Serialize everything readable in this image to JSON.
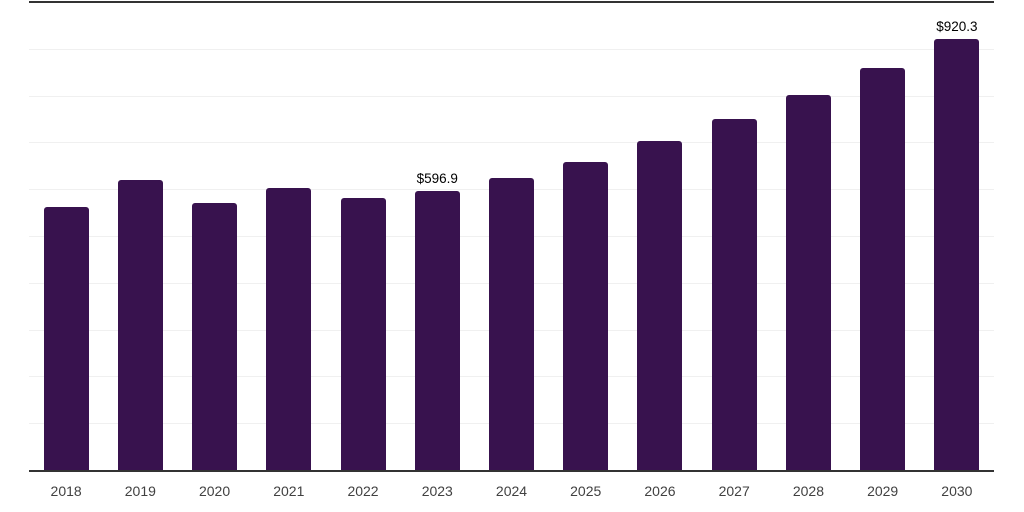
{
  "chart_data": {
    "type": "bar",
    "title": "",
    "xlabel": "",
    "ylabel": "",
    "categories": [
      "2018",
      "2019",
      "2020",
      "2021",
      "2022",
      "2023",
      "2024",
      "2025",
      "2026",
      "2027",
      "2028",
      "2029",
      "2030"
    ],
    "values": [
      561,
      620,
      570,
      603,
      581,
      596.9,
      625,
      659,
      702,
      750,
      801,
      858,
      920.3
    ],
    "point_labels": [
      "",
      "",
      "",
      "",
      "",
      "$596.9",
      "",
      "",
      "",
      "",
      "",
      "",
      "$920.3"
    ],
    "ylim": [
      0,
      1000
    ],
    "grid_step": 100,
    "grid": true,
    "legend_position": "none",
    "y_tick_labels_visible": false
  },
  "colors": {
    "bar": "#38124e",
    "gridline": "#f0f0f0",
    "axis_line": "#333333",
    "tick_text": "#414141",
    "value_label_text": "#000000",
    "background": "#ffffff"
  }
}
